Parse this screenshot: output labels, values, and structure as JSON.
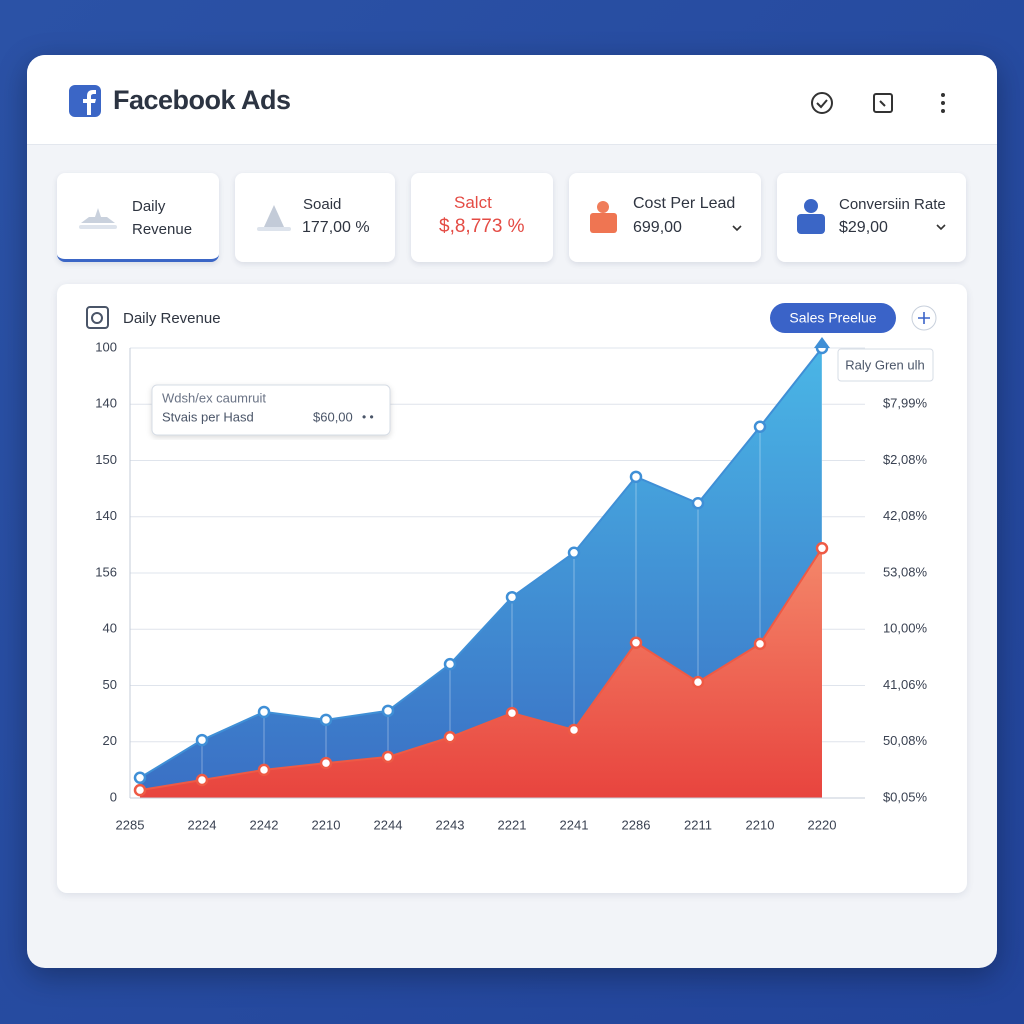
{
  "header": {
    "title": "Facebook Ads"
  },
  "kpis": [
    {
      "label": "Daily Revenue"
    },
    {
      "label": "Soaid",
      "value": "177,00 %"
    },
    {
      "label": "Salct",
      "value": "$,8,773 %"
    },
    {
      "label": "Cost Per Lead",
      "value": "699,00"
    },
    {
      "label": "Conversiin Rate",
      "value": "$29,00"
    }
  ],
  "panel": {
    "title": "Daily Revenue",
    "button": "Sales Preelue",
    "legend_label": "Raly Gren ulh",
    "tooltip": {
      "title": "Wdsh/ex caumruit",
      "label": "Stvais per Hasd",
      "value": "$60,00"
    }
  },
  "chart_data": {
    "type": "area",
    "categories": [
      "2285",
      "2224",
      "2242",
      "2210",
      "2244",
      "2243",
      "2221",
      "2241",
      "2286",
      "2211",
      "2210",
      "2220"
    ],
    "series": [
      {
        "color": "#3f8fd6",
        "values": [
          0.36,
          1.03,
          1.53,
          1.39,
          1.55,
          2.38,
          3.57,
          4.36,
          5.71,
          5.24,
          6.6,
          8.0
        ]
      },
      {
        "color": "#ee5a45",
        "values": [
          0.14,
          0.32,
          0.5,
          0.62,
          0.73,
          1.08,
          1.51,
          1.21,
          2.76,
          2.06,
          2.74,
          4.44
        ]
      }
    ],
    "ylim": [
      0,
      8
    ],
    "yticks": [
      0,
      {
        "value": 1,
        "label": "20"
      },
      {
        "value": 2,
        "label": "50"
      },
      {
        "value": 3,
        "label": "40"
      },
      {
        "value": 4,
        "label": "156"
      },
      {
        "value": 5,
        "label": "140"
      },
      {
        "value": 6,
        "label": "150"
      },
      {
        "value": 7,
        "label": "140"
      },
      {
        "value": 8,
        "label": "100"
      }
    ],
    "y2lim": [
      0,
      8
    ],
    "y2ticks": [
      {
        "value": 0,
        "label": "$0,05%"
      },
      {
        "value": 1,
        "label": "50,08%"
      },
      {
        "value": 2,
        "label": "41,06%"
      },
      {
        "value": 3,
        "label": "10,00%"
      },
      {
        "value": 4,
        "label": "53,08%"
      },
      {
        "value": 5,
        "label": "42,08%"
      },
      {
        "value": 6,
        "label": "$2,08%"
      },
      {
        "value": 7,
        "label": "$7,99%"
      }
    ],
    "grid": true
  }
}
